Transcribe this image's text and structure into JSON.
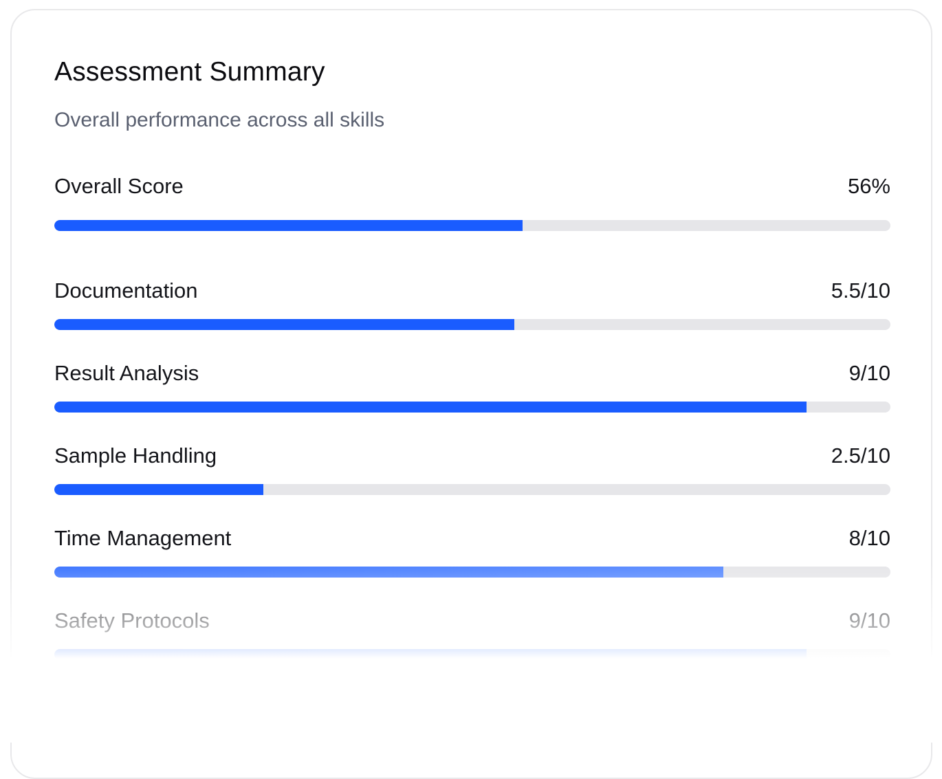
{
  "header": {
    "title": "Assessment Summary",
    "subtitle": "Overall performance across all skills"
  },
  "colors": {
    "accent": "#1a5cff",
    "track": "#e6e6e9"
  },
  "metrics": [
    {
      "label": "Overall Score",
      "value": "56%",
      "fraction": 0.56
    },
    {
      "label": "Documentation",
      "value": "5.5/10",
      "fraction": 0.55
    },
    {
      "label": "Result Analysis",
      "value": "9/10",
      "fraction": 0.9
    },
    {
      "label": "Sample Handling",
      "value": "2.5/10",
      "fraction": 0.25
    },
    {
      "label": "Time Management",
      "value": "8/10",
      "fraction": 0.8
    },
    {
      "label": "Safety Protocols",
      "value": "9/10",
      "fraction": 0.9
    }
  ]
}
